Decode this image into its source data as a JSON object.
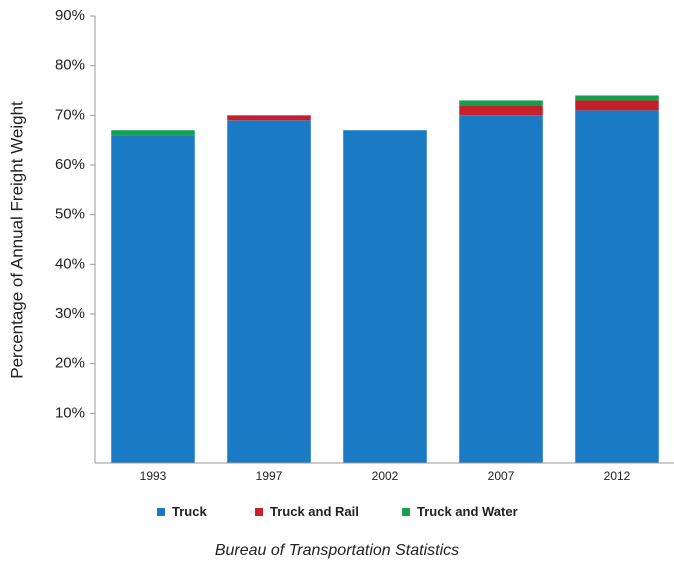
{
  "chart_data": {
    "type": "stacked_bar",
    "y_label": "Percentage of Annual Freight Weight",
    "source": "Bureau of Transportation Statistics",
    "categories": [
      "1993",
      "1997",
      "2002",
      "2007",
      "2012"
    ],
    "series": [
      {
        "name": "Truck",
        "color": "#1a7bc4",
        "values": [
          66,
          69,
          67,
          70,
          71
        ]
      },
      {
        "name": "Truck and Rail",
        "color": "#c8202a",
        "values": [
          0,
          1,
          0,
          2,
          2
        ]
      },
      {
        "name": "Truck and Water",
        "color": "#13a04f",
        "values": [
          1,
          0,
          0,
          1,
          1
        ]
      }
    ],
    "ylim": [
      0,
      90
    ],
    "yticks": [
      {
        "value": 10,
        "label": "10%"
      },
      {
        "value": 20,
        "label": "20%"
      },
      {
        "value": 30,
        "label": "30%"
      },
      {
        "value": 40,
        "label": "40%"
      },
      {
        "value": 50,
        "label": "50%"
      },
      {
        "value": 60,
        "label": "60%"
      },
      {
        "value": 70,
        "label": "70%"
      },
      {
        "value": 80,
        "label": "80%"
      },
      {
        "value": 90,
        "label": "90%"
      }
    ],
    "grid": false,
    "legend": "bottom"
  }
}
